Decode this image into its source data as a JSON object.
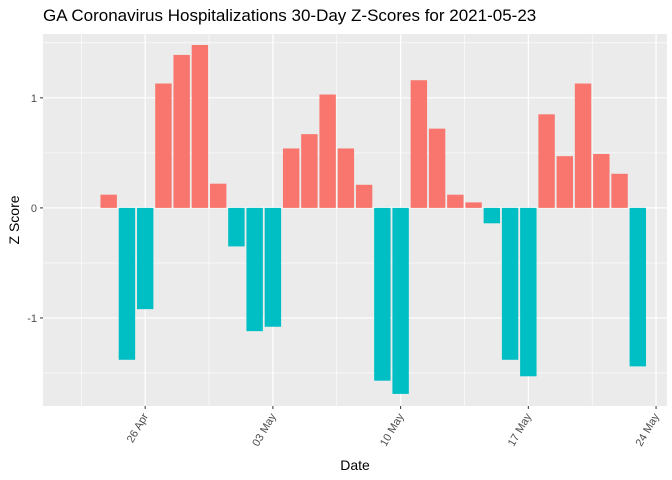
{
  "chart_data": {
    "type": "bar",
    "title": "GA Coronavirus Hospitalizations 30-Day Z-Scores for 2021-05-23",
    "xlabel": "Date",
    "ylabel": "Z Score",
    "ylim": [
      -1.8,
      1.58
    ],
    "xlim": [
      "2021-04-21",
      "2021-05-24"
    ],
    "y_ticks": [
      -1,
      0,
      1
    ],
    "y_tick_labels": [
      "-1",
      "0",
      "1"
    ],
    "x_ticks": [
      "2021-04-26",
      "2021-05-03",
      "2021-05-10",
      "2021-05-17",
      "2021-05-24"
    ],
    "x_tick_labels": [
      "26 Apr",
      "03 May",
      "10 May",
      "17 May",
      "24 May"
    ],
    "grid": true,
    "legend": "none",
    "colors": {
      "positive": "#F8766D",
      "negative": "#00BFC4",
      "panel": "#EBEBEB",
      "grid": "#FFFFFF"
    },
    "dates": [
      "2021-04-24",
      "2021-04-25",
      "2021-04-26",
      "2021-04-27",
      "2021-04-28",
      "2021-04-29",
      "2021-04-30",
      "2021-05-01",
      "2021-05-02",
      "2021-05-03",
      "2021-05-04",
      "2021-05-05",
      "2021-05-06",
      "2021-05-07",
      "2021-05-08",
      "2021-05-09",
      "2021-05-10",
      "2021-05-11",
      "2021-05-12",
      "2021-05-13",
      "2021-05-14",
      "2021-05-15",
      "2021-05-16",
      "2021-05-17",
      "2021-05-18",
      "2021-05-19",
      "2021-05-20",
      "2021-05-21",
      "2021-05-22",
      "2021-05-23"
    ],
    "values": [
      0.12,
      -1.38,
      -0.92,
      1.13,
      1.39,
      1.48,
      0.22,
      -0.35,
      -1.12,
      -1.08,
      0.54,
      0.67,
      1.03,
      0.54,
      0.21,
      -1.57,
      -1.69,
      1.16,
      0.72,
      0.12,
      0.05,
      -0.14,
      -1.38,
      -1.53,
      0.85,
      0.47,
      1.13,
      0.49,
      0.31,
      -1.44
    ]
  }
}
